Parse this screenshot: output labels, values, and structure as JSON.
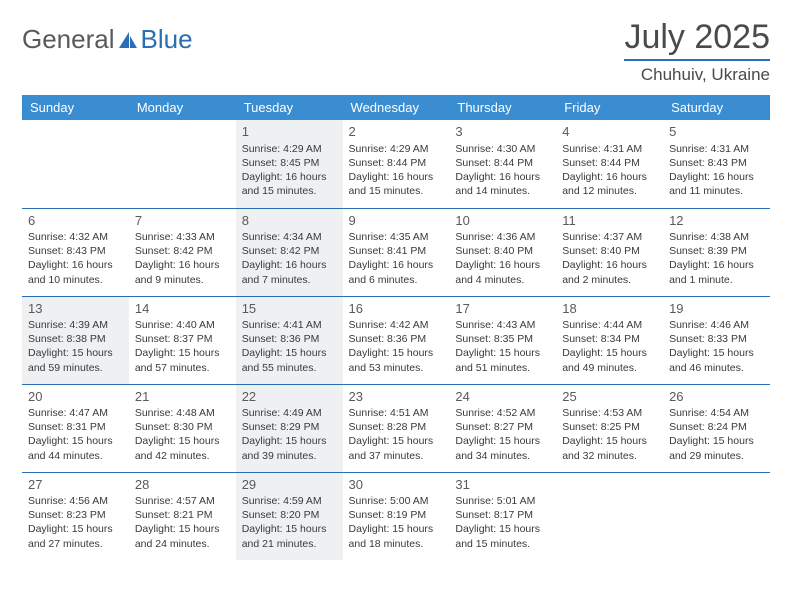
{
  "brand": {
    "part1": "General",
    "part2": "Blue"
  },
  "title": {
    "month": "July 2025",
    "location": "Chuhuiv, Ukraine"
  },
  "colors": {
    "header_bg": "#3a8dd0",
    "border": "#2a6fb5",
    "shaded_bg": "#eef0f2",
    "text": "#3a3a3a",
    "page_bg": "#ffffff"
  },
  "typography": {
    "month_fontsize": 34,
    "location_fontsize": 17,
    "dayheader_fontsize": 13,
    "daynum_fontsize": 13,
    "cell_fontsize": 10.5
  },
  "day_headers": [
    "Sunday",
    "Monday",
    "Tuesday",
    "Wednesday",
    "Thursday",
    "Friday",
    "Saturday"
  ],
  "weeks": [
    [
      null,
      null,
      {
        "n": "1",
        "shaded": true,
        "lines": [
          "Sunrise: 4:29 AM",
          "Sunset: 8:45 PM",
          "Daylight: 16 hours",
          "and 15 minutes."
        ]
      },
      {
        "n": "2",
        "shaded": false,
        "lines": [
          "Sunrise: 4:29 AM",
          "Sunset: 8:44 PM",
          "Daylight: 16 hours",
          "and 15 minutes."
        ]
      },
      {
        "n": "3",
        "shaded": false,
        "lines": [
          "Sunrise: 4:30 AM",
          "Sunset: 8:44 PM",
          "Daylight: 16 hours",
          "and 14 minutes."
        ]
      },
      {
        "n": "4",
        "shaded": false,
        "lines": [
          "Sunrise: 4:31 AM",
          "Sunset: 8:44 PM",
          "Daylight: 16 hours",
          "and 12 minutes."
        ]
      },
      {
        "n": "5",
        "shaded": false,
        "lines": [
          "Sunrise: 4:31 AM",
          "Sunset: 8:43 PM",
          "Daylight: 16 hours",
          "and 11 minutes."
        ]
      }
    ],
    [
      {
        "n": "6",
        "shaded": false,
        "lines": [
          "Sunrise: 4:32 AM",
          "Sunset: 8:43 PM",
          "Daylight: 16 hours",
          "and 10 minutes."
        ]
      },
      {
        "n": "7",
        "shaded": false,
        "lines": [
          "Sunrise: 4:33 AM",
          "Sunset: 8:42 PM",
          "Daylight: 16 hours",
          "and 9 minutes."
        ]
      },
      {
        "n": "8",
        "shaded": true,
        "lines": [
          "Sunrise: 4:34 AM",
          "Sunset: 8:42 PM",
          "Daylight: 16 hours",
          "and 7 minutes."
        ]
      },
      {
        "n": "9",
        "shaded": false,
        "lines": [
          "Sunrise: 4:35 AM",
          "Sunset: 8:41 PM",
          "Daylight: 16 hours",
          "and 6 minutes."
        ]
      },
      {
        "n": "10",
        "shaded": false,
        "lines": [
          "Sunrise: 4:36 AM",
          "Sunset: 8:40 PM",
          "Daylight: 16 hours",
          "and 4 minutes."
        ]
      },
      {
        "n": "11",
        "shaded": false,
        "lines": [
          "Sunrise: 4:37 AM",
          "Sunset: 8:40 PM",
          "Daylight: 16 hours",
          "and 2 minutes."
        ]
      },
      {
        "n": "12",
        "shaded": false,
        "lines": [
          "Sunrise: 4:38 AM",
          "Sunset: 8:39 PM",
          "Daylight: 16 hours",
          "and 1 minute."
        ]
      }
    ],
    [
      {
        "n": "13",
        "shaded": true,
        "lines": [
          "Sunrise: 4:39 AM",
          "Sunset: 8:38 PM",
          "Daylight: 15 hours",
          "and 59 minutes."
        ]
      },
      {
        "n": "14",
        "shaded": false,
        "lines": [
          "Sunrise: 4:40 AM",
          "Sunset: 8:37 PM",
          "Daylight: 15 hours",
          "and 57 minutes."
        ]
      },
      {
        "n": "15",
        "shaded": true,
        "lines": [
          "Sunrise: 4:41 AM",
          "Sunset: 8:36 PM",
          "Daylight: 15 hours",
          "and 55 minutes."
        ]
      },
      {
        "n": "16",
        "shaded": false,
        "lines": [
          "Sunrise: 4:42 AM",
          "Sunset: 8:36 PM",
          "Daylight: 15 hours",
          "and 53 minutes."
        ]
      },
      {
        "n": "17",
        "shaded": false,
        "lines": [
          "Sunrise: 4:43 AM",
          "Sunset: 8:35 PM",
          "Daylight: 15 hours",
          "and 51 minutes."
        ]
      },
      {
        "n": "18",
        "shaded": false,
        "lines": [
          "Sunrise: 4:44 AM",
          "Sunset: 8:34 PM",
          "Daylight: 15 hours",
          "and 49 minutes."
        ]
      },
      {
        "n": "19",
        "shaded": false,
        "lines": [
          "Sunrise: 4:46 AM",
          "Sunset: 8:33 PM",
          "Daylight: 15 hours",
          "and 46 minutes."
        ]
      }
    ],
    [
      {
        "n": "20",
        "shaded": false,
        "lines": [
          "Sunrise: 4:47 AM",
          "Sunset: 8:31 PM",
          "Daylight: 15 hours",
          "and 44 minutes."
        ]
      },
      {
        "n": "21",
        "shaded": false,
        "lines": [
          "Sunrise: 4:48 AM",
          "Sunset: 8:30 PM",
          "Daylight: 15 hours",
          "and 42 minutes."
        ]
      },
      {
        "n": "22",
        "shaded": true,
        "lines": [
          "Sunrise: 4:49 AM",
          "Sunset: 8:29 PM",
          "Daylight: 15 hours",
          "and 39 minutes."
        ]
      },
      {
        "n": "23",
        "shaded": false,
        "lines": [
          "Sunrise: 4:51 AM",
          "Sunset: 8:28 PM",
          "Daylight: 15 hours",
          "and 37 minutes."
        ]
      },
      {
        "n": "24",
        "shaded": false,
        "lines": [
          "Sunrise: 4:52 AM",
          "Sunset: 8:27 PM",
          "Daylight: 15 hours",
          "and 34 minutes."
        ]
      },
      {
        "n": "25",
        "shaded": false,
        "lines": [
          "Sunrise: 4:53 AM",
          "Sunset: 8:25 PM",
          "Daylight: 15 hours",
          "and 32 minutes."
        ]
      },
      {
        "n": "26",
        "shaded": false,
        "lines": [
          "Sunrise: 4:54 AM",
          "Sunset: 8:24 PM",
          "Daylight: 15 hours",
          "and 29 minutes."
        ]
      }
    ],
    [
      {
        "n": "27",
        "shaded": false,
        "lines": [
          "Sunrise: 4:56 AM",
          "Sunset: 8:23 PM",
          "Daylight: 15 hours",
          "and 27 minutes."
        ]
      },
      {
        "n": "28",
        "shaded": false,
        "lines": [
          "Sunrise: 4:57 AM",
          "Sunset: 8:21 PM",
          "Daylight: 15 hours",
          "and 24 minutes."
        ]
      },
      {
        "n": "29",
        "shaded": true,
        "lines": [
          "Sunrise: 4:59 AM",
          "Sunset: 8:20 PM",
          "Daylight: 15 hours",
          "and 21 minutes."
        ]
      },
      {
        "n": "30",
        "shaded": false,
        "lines": [
          "Sunrise: 5:00 AM",
          "Sunset: 8:19 PM",
          "Daylight: 15 hours",
          "and 18 minutes."
        ]
      },
      {
        "n": "31",
        "shaded": false,
        "lines": [
          "Sunrise: 5:01 AM",
          "Sunset: 8:17 PM",
          "Daylight: 15 hours",
          "and 15 minutes."
        ]
      },
      null,
      null
    ]
  ]
}
